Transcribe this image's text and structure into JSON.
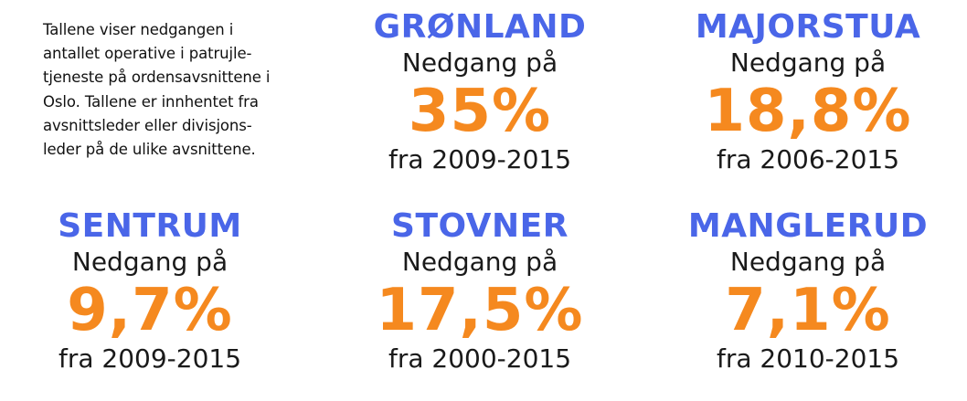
{
  "intro": {
    "lines": [
      "Tallene viser nedgangen i",
      "antallet operative i patrujle-",
      "tjeneste på ordensavsnittene i",
      "Oslo. Tallene er innhentet fra",
      "avsnittsleder eller divisjons-",
      "leder på de ulike avsnittene."
    ]
  },
  "colors": {
    "district": "#4a66e8",
    "percentage": "#f5891f",
    "text": "#1a1a1a"
  },
  "districts": [
    {
      "name": "GRØNLAND",
      "lead": "Nedgang på",
      "percent": "35%",
      "period": "fra 2009-2015"
    },
    {
      "name": "MAJORSTUA",
      "lead": "Nedgang på",
      "percent": "18,8%",
      "period": "fra 2006-2015"
    },
    {
      "name": "SENTRUM",
      "lead": "Nedgang på",
      "percent": "9,7%",
      "period": "fra 2009-2015"
    },
    {
      "name": "STOVNER",
      "lead": "Nedgang på",
      "percent": "17,5%",
      "period": "fra 2000-2015"
    },
    {
      "name": "MANGLERUD",
      "lead": "Nedgang på",
      "percent": "7,1%",
      "period": "fra 2010-2015"
    }
  ]
}
